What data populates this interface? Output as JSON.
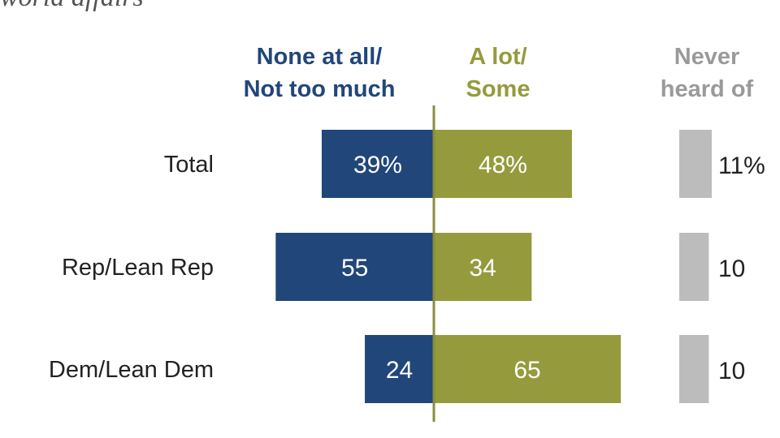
{
  "subtitle": "world affairs",
  "columns": {
    "negative": [
      "None at all/",
      "Not too much"
    ],
    "positive": [
      "A lot/",
      "Some"
    ],
    "never": [
      "Never",
      "heard of"
    ]
  },
  "colors": {
    "negative": "#21467a",
    "positive": "#959b3c",
    "never": "#bcbcbc",
    "axis": "#8a8e3b",
    "text": "#222222",
    "bar_text": "#ffffff"
  },
  "chart_data": {
    "type": "bar",
    "orientation": "horizontal-diverging",
    "categories": [
      "Total",
      "Rep/Lean Rep",
      "Dem/Lean Dem"
    ],
    "series": [
      {
        "name": "None at all/Not too much",
        "values": [
          39,
          55,
          24
        ],
        "labels": [
          "39%",
          "55",
          "24"
        ]
      },
      {
        "name": "A lot/Some",
        "values": [
          48,
          34,
          65
        ],
        "labels": [
          "48%",
          "34",
          "65"
        ]
      },
      {
        "name": "Never heard of",
        "values": [
          11,
          10,
          10
        ],
        "labels": [
          "11%",
          "10",
          "10"
        ]
      }
    ],
    "xlim": [
      -55,
      65
    ],
    "grid": false
  }
}
